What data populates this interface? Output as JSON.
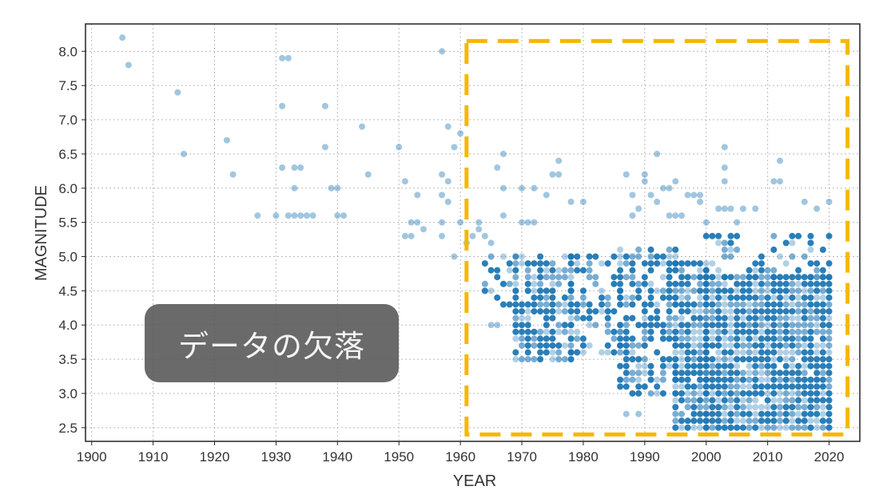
{
  "chart_data": {
    "type": "scatter",
    "xlabel": "YEAR",
    "ylabel": "MAGNITUDE",
    "xlim": [
      1899,
      2025
    ],
    "ylim": [
      2.3,
      8.4
    ],
    "x_ticks": [
      1900,
      1910,
      1920,
      1930,
      1940,
      1950,
      1960,
      1970,
      1980,
      1990,
      2000,
      2010,
      2020
    ],
    "y_ticks": [
      2.5,
      3.0,
      3.5,
      4.0,
      4.5,
      5.0,
      5.5,
      6.0,
      6.5,
      7.0,
      7.5,
      8.0
    ],
    "y_tick_labels": [
      "2.5",
      "3.0",
      "3.5",
      "4.0",
      "4.5",
      "5.0",
      "5.5",
      "6.0",
      "6.5",
      "7.0",
      "7.5",
      "8.0"
    ],
    "grid": true,
    "point_color": "#1f77b4",
    "highlight_color": "#f5b800",
    "highlight_region": {
      "x": [
        1961,
        2023
      ],
      "y": [
        2.4,
        8.15
      ]
    },
    "annotation": "データの欠落",
    "early_points": [
      [
        1905,
        8.2
      ],
      [
        1906,
        7.8
      ],
      [
        1914,
        7.4
      ],
      [
        1915,
        6.5
      ],
      [
        1922,
        6.7
      ],
      [
        1923,
        6.2
      ],
      [
        1927,
        5.6
      ],
      [
        1930,
        5.6
      ],
      [
        1931,
        7.9
      ],
      [
        1932,
        7.9
      ],
      [
        1931,
        7.2
      ],
      [
        1931,
        6.3
      ],
      [
        1932,
        5.6
      ],
      [
        1933,
        5.6
      ],
      [
        1933,
        6.3
      ],
      [
        1934,
        6.3
      ],
      [
        1933,
        6.0
      ],
      [
        1934,
        5.6
      ],
      [
        1935,
        5.6
      ],
      [
        1936,
        5.6
      ],
      [
        1938,
        7.2
      ],
      [
        1938,
        6.6
      ],
      [
        1939,
        6.0
      ],
      [
        1940,
        6.0
      ],
      [
        1940,
        5.6
      ],
      [
        1941,
        5.6
      ],
      [
        1944,
        6.9
      ],
      [
        1945,
        6.2
      ],
      [
        1950,
        6.6
      ],
      [
        1951,
        6.1
      ],
      [
        1951,
        5.3
      ],
      [
        1952,
        5.5
      ],
      [
        1952,
        5.3
      ],
      [
        1953,
        5.9
      ],
      [
        1953,
        5.5
      ],
      [
        1954,
        5.4
      ],
      [
        1957,
        8.0
      ],
      [
        1957,
        6.2
      ],
      [
        1957,
        5.9
      ],
      [
        1957,
        5.5
      ],
      [
        1957,
        5.3
      ],
      [
        1958,
        6.9
      ],
      [
        1958,
        6.1
      ],
      [
        1958,
        5.8
      ],
      [
        1959,
        6.6
      ],
      [
        1959,
        5.0
      ],
      [
        1960,
        6.8
      ],
      [
        1960,
        5.5
      ],
      [
        1961,
        5.2
      ],
      [
        1962,
        5.3
      ],
      [
        1963,
        5.4
      ],
      [
        1963,
        5.5
      ],
      [
        1965,
        4.0
      ],
      [
        1966,
        4.0
      ],
      [
        1966,
        6.3
      ],
      [
        1967,
        6.5
      ],
      [
        1967,
        6.0
      ],
      [
        1967,
        5.6
      ],
      [
        1970,
        6.0
      ],
      [
        1970,
        5.5
      ],
      [
        1972,
        6.0
      ],
      [
        1971,
        5.5
      ],
      [
        1972,
        5.5
      ],
      [
        1974,
        5.9
      ],
      [
        1975,
        6.2
      ],
      [
        1976,
        6.4
      ],
      [
        1976,
        6.2
      ],
      [
        1978,
        5.8
      ],
      [
        1980,
        5.8
      ],
      [
        1987,
        6.2
      ],
      [
        1988,
        5.9
      ],
      [
        1988,
        5.6
      ],
      [
        1989,
        5.7
      ],
      [
        1990,
        6.1
      ],
      [
        1990,
        6.2
      ],
      [
        1991,
        5.9
      ],
      [
        1992,
        6.5
      ],
      [
        1992,
        5.8
      ],
      [
        1993,
        6.0
      ],
      [
        1994,
        6.0
      ],
      [
        1994,
        5.6
      ],
      [
        1995,
        6.1
      ],
      [
        1995,
        5.6
      ],
      [
        1996,
        5.6
      ],
      [
        1997,
        5.9
      ],
      [
        1998,
        5.9
      ],
      [
        1999,
        5.9
      ],
      [
        1999,
        5.8
      ],
      [
        2000,
        5.5
      ],
      [
        2003,
        6.6
      ],
      [
        2003,
        6.3
      ],
      [
        2003,
        6.1
      ],
      [
        2002,
        5.7
      ],
      [
        2003,
        5.7
      ],
      [
        2004,
        5.7
      ],
      [
        2005,
        5.5
      ],
      [
        2006,
        5.7
      ],
      [
        2008,
        5.7
      ],
      [
        2011,
        6.1
      ],
      [
        2012,
        6.1
      ],
      [
        2012,
        6.4
      ],
      [
        2016,
        5.8
      ],
      [
        2018,
        5.7
      ],
      [
        2020,
        5.8
      ],
      [
        1987,
        2.7
      ],
      [
        1989,
        2.7
      ],
      [
        1964,
        5.3
      ],
      [
        1965,
        5.2
      ]
    ],
    "dense_clusters": [
      {
        "x": [
          1964,
          1969
        ],
        "y": [
          4.3,
          5.0
        ],
        "density": 0.35
      },
      {
        "x": [
          1969,
          1978
        ],
        "y": [
          3.5,
          5.0
        ],
        "density": 0.75
      },
      {
        "x": [
          1978,
          1986
        ],
        "y": [
          3.6,
          5.0
        ],
        "density": 0.45
      },
      {
        "x": [
          1986,
          1995
        ],
        "y": [
          3.0,
          5.1
        ],
        "density": 0.6
      },
      {
        "x": [
          1995,
          2000
        ],
        "y": [
          2.5,
          4.9
        ],
        "density": 0.9
      },
      {
        "x": [
          2000,
          2020
        ],
        "y": [
          2.5,
          4.7
        ],
        "density": 0.98
      },
      {
        "x": [
          2000,
          2020
        ],
        "y": [
          4.7,
          5.3
        ],
        "density": 0.35
      }
    ]
  }
}
